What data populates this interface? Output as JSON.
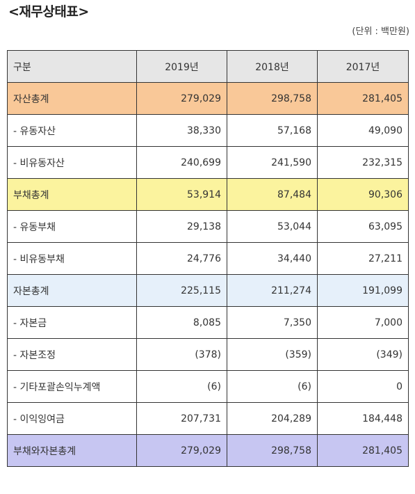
{
  "title": "<재무상태표>",
  "unit": "(단위 : 백만원)",
  "table": {
    "headers": [
      "구분",
      "2019년",
      "2018년",
      "2017년"
    ],
    "rows": [
      {
        "label": "자산총계",
        "values": [
          "279,029",
          "298,758",
          "281,405"
        ],
        "highlight": "#f9c898"
      },
      {
        "label": "- 유동자산",
        "values": [
          "38,330",
          "57,168",
          "49,090"
        ]
      },
      {
        "label": "- 비유동자산",
        "values": [
          "240,699",
          "241,590",
          "232,315"
        ]
      },
      {
        "label": "부채총계",
        "values": [
          "53,914",
          "87,484",
          "90,306"
        ],
        "highlight": "#fbf39e"
      },
      {
        "label": "- 유동부채",
        "values": [
          "29,138",
          "53,044",
          "63,095"
        ]
      },
      {
        "label": "- 비유동부채",
        "values": [
          "24,776",
          "34,440",
          "27,211"
        ]
      },
      {
        "label": "자본총계",
        "values": [
          "225,115",
          "211,274",
          "191,099"
        ],
        "highlight": "#e6f0fa"
      },
      {
        "label": "- 자본금",
        "values": [
          "8,085",
          "7,350",
          "7,000"
        ]
      },
      {
        "label": "- 자본조정",
        "values": [
          "(378)",
          "(359)",
          "(349)"
        ]
      },
      {
        "label": "- 기타포괄손익누계액",
        "values": [
          "(6)",
          "(6)",
          "0"
        ]
      },
      {
        "label": "- 이익잉여금",
        "values": [
          "207,731",
          "204,289",
          "184,448"
        ]
      },
      {
        "label": "부채와자본총계",
        "values": [
          "279,029",
          "298,758",
          "281,405"
        ],
        "highlight": "#c7c6f2"
      }
    ]
  }
}
